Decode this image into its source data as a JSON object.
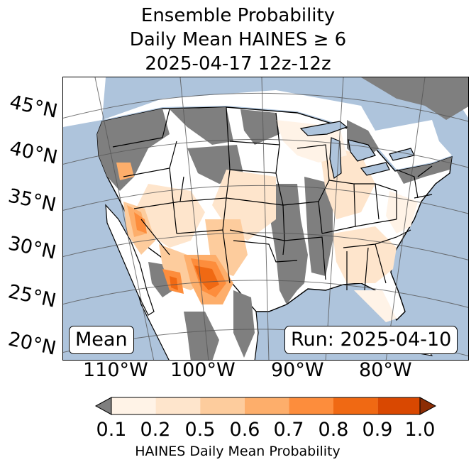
{
  "title": {
    "line1": "Ensemble Probability",
    "line2": "Daily Mean HAINES ≥ 6",
    "line3": "2025-04-17 12z-12z"
  },
  "map": {
    "lat_labels": [
      "45°N",
      "40°N",
      "35°N",
      "30°N",
      "25°N",
      "20°N"
    ],
    "lon_labels": [
      "110°W",
      "100°W",
      "90°W",
      "80°W"
    ],
    "mean_box": "Mean",
    "run_box": "Run: 2025-04-10",
    "colors": {
      "ocean": "#aec4dc",
      "land_nodata": "#ffffff",
      "below_threshold": "#7f7f7f",
      "lakes": "#aec4dc",
      "borders": "#000000",
      "graticule": "#555555"
    }
  },
  "colorbar": {
    "ticks": [
      "0.1",
      "0.2",
      "0.5",
      "0.6",
      "0.7",
      "0.8",
      "0.9",
      "1.0"
    ],
    "label": "HAINES Daily Mean Probability",
    "under_color": "#7f7f7f",
    "bin_colors": [
      "#fff3e7",
      "#fee5cc",
      "#fdcc9d",
      "#fdae6b",
      "#fd8d3c",
      "#f06913",
      "#d94801"
    ],
    "over_color": "#8c2d04"
  }
}
